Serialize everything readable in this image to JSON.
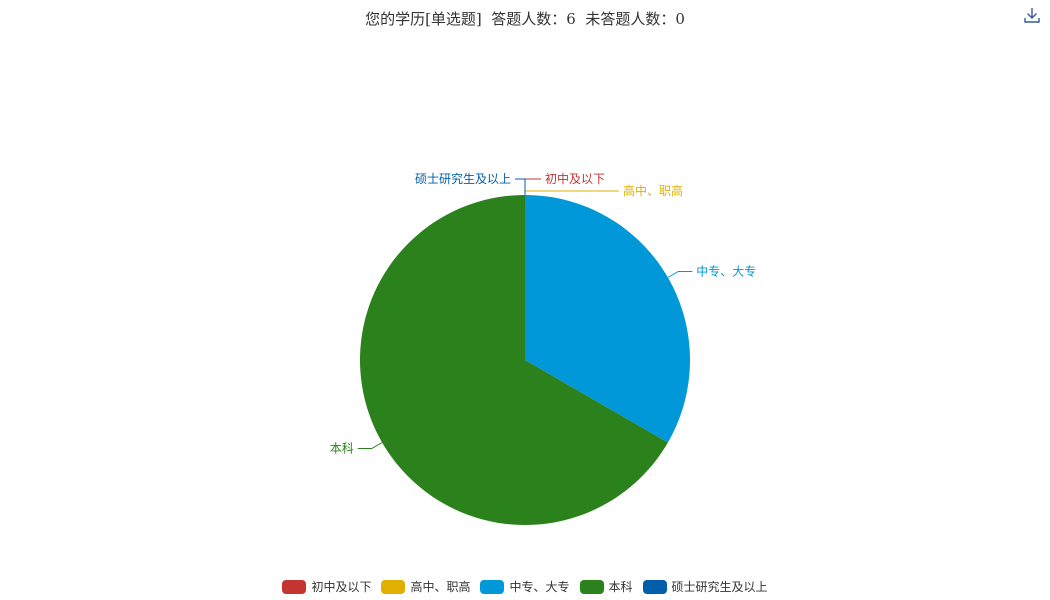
{
  "title": "您的学历[单选题]  答题人数：6  未答题人数：0",
  "toolbar": {
    "download_icon": "download-icon"
  },
  "chart_data": {
    "type": "pie",
    "slices": [
      {
        "label": "初中及以下",
        "value": 0,
        "color": "#c23531"
      },
      {
        "label": "高中、职高",
        "value": 0,
        "color": "#e0b000"
      },
      {
        "label": "中专、大专",
        "value": 2,
        "color": "#0098d9"
      },
      {
        "label": "本科",
        "value": 4,
        "color": "#2b821d"
      },
      {
        "label": "硕士研究生及以上",
        "value": 0,
        "color": "#005eaa"
      }
    ],
    "legend_position": "bottom-center",
    "start_angle_deg": 90,
    "clockwise": true
  }
}
